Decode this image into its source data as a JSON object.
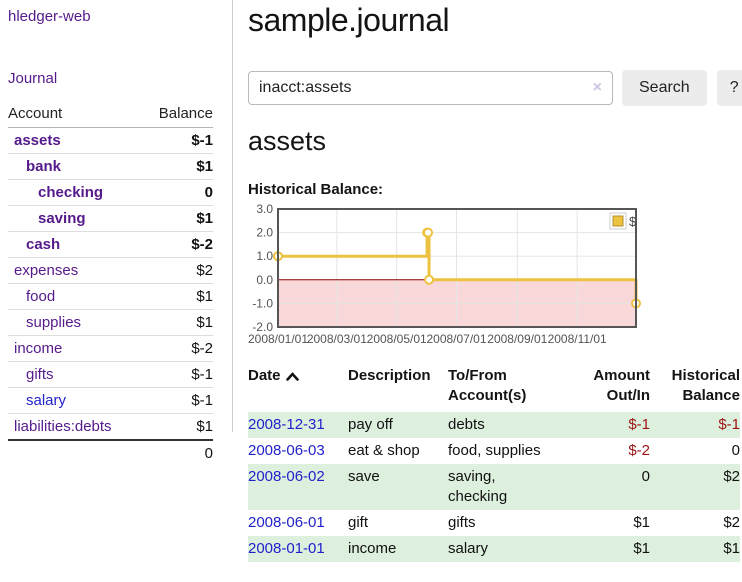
{
  "sidebar": {
    "app_title": "hledger-web",
    "journal_link": "Journal",
    "accounts_table": {
      "headers": {
        "account": "Account",
        "balance": "Balance"
      },
      "rows": [
        {
          "name": "assets",
          "balance": "$-1",
          "depth": 0,
          "bold": true
        },
        {
          "name": "bank",
          "balance": "$1",
          "depth": 1,
          "bold": true
        },
        {
          "name": "checking",
          "balance": "0",
          "depth": 2,
          "bold": true
        },
        {
          "name": "saving",
          "balance": "$1",
          "depth": 2,
          "bold": true
        },
        {
          "name": "cash",
          "balance": "$-2",
          "depth": 1,
          "bold": true
        },
        {
          "name": "expenses",
          "balance": "$2",
          "depth": 0,
          "bold": false
        },
        {
          "name": "food",
          "balance": "$1",
          "depth": 1,
          "bold": false
        },
        {
          "name": "supplies",
          "balance": "$1",
          "depth": 1,
          "bold": false
        },
        {
          "name": "income",
          "balance": "$-2",
          "depth": 0,
          "bold": false
        },
        {
          "name": "gifts",
          "balance": "$-1",
          "depth": 1,
          "bold": false
        },
        {
          "name": "salary",
          "balance": "$-1",
          "depth": 1,
          "bold": false,
          "blue": true
        },
        {
          "name": "liabilities:debts",
          "balance": "$1",
          "depth": 0,
          "bold": false
        }
      ],
      "total": "0"
    }
  },
  "main": {
    "title": "sample.journal",
    "search": {
      "value": "inacct:assets",
      "clear_icon": "×",
      "button_label": "Search",
      "help_label": "?"
    },
    "account_heading": "assets",
    "chart_heading": "Historical Balance:",
    "register_table": {
      "headers": {
        "date": "Date",
        "sort_icon": "caret-up",
        "description": "Description",
        "accounts": "To/From Account(s)",
        "amount": "Amount Out/In",
        "balance": "Historical Balance"
      },
      "rows": [
        {
          "date": "2008-12-31",
          "description": "pay off",
          "accounts": "debts",
          "amount": "$-1",
          "balance": "$-1"
        },
        {
          "date": "2008-06-03",
          "description": "eat & shop",
          "accounts": "food, supplies",
          "amount": "$-2",
          "balance": "0"
        },
        {
          "date": "2008-06-02",
          "description": "save",
          "accounts": "saving, checking",
          "amount": "0",
          "balance": "$2"
        },
        {
          "date": "2008-06-01",
          "description": "gift",
          "accounts": "gifts",
          "amount": "$1",
          "balance": "$2"
        },
        {
          "date": "2008-01-01",
          "description": "income",
          "accounts": "salary",
          "amount": "$1",
          "balance": "$1"
        }
      ]
    }
  },
  "chart_data": {
    "type": "line",
    "step": true,
    "title": "Historical Balance:",
    "series": [
      {
        "name": "$",
        "color": "#edc240",
        "points": [
          [
            "2008-01-01",
            1
          ],
          [
            "2008-06-01",
            2
          ],
          [
            "2008-06-02",
            2
          ],
          [
            "2008-06-03",
            0
          ],
          [
            "2008-12-31",
            -1
          ]
        ]
      }
    ],
    "x_range": [
      "2008-01-01",
      "2008-12-31"
    ],
    "ylim": [
      -2,
      3
    ],
    "y_ticks": [
      3.0,
      2.0,
      1.0,
      0.0,
      -1.0,
      -2.0
    ],
    "x_ticks": [
      {
        "date": "2008-01-01",
        "label": "2008/01/01"
      },
      {
        "date": "2008-03-01",
        "label": "2008/03/01"
      },
      {
        "date": "2008-05-01",
        "label": "2008/05/01"
      },
      {
        "date": "2008-07-01",
        "label": "2008/07/01"
      },
      {
        "date": "2008-09-01",
        "label": "2008/09/01"
      },
      {
        "date": "2008-11-01",
        "label": "2008/11/01"
      }
    ],
    "legend_position": "top-right",
    "grid": true,
    "negative_region_color": "#f8d8d8",
    "zero_line_color": "#8b0000",
    "grid_color": "#e5e5e5",
    "border_color": "#555555",
    "tick_color": "#545454"
  },
  "colors": {
    "link_purple": "#551a8b",
    "link_blue": "#2222cc",
    "negative_strong": "#9c1414",
    "negative_soft": "#bd7f7f",
    "row_stripe_green": "#ddefdd",
    "chart_line_gold": "#edc240",
    "button_bg": "#ececec"
  }
}
